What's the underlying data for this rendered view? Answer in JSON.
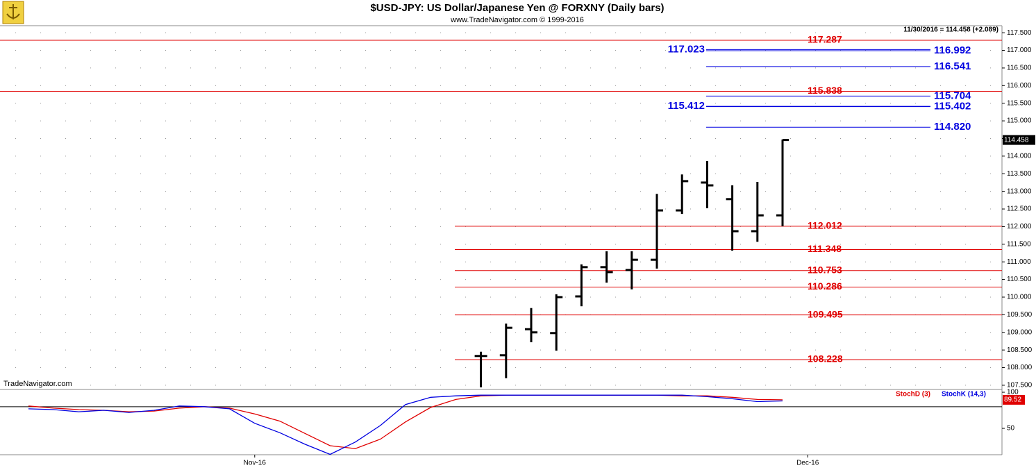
{
  "header": {
    "title": "$USD-JPY:  US Dollar/Japanese Yen @ FORXNY  (Daily bars)",
    "subtitle": "www.TradeNavigator.com © 1999-2016",
    "quote": "11/30/2016 = 114.458 (+2.089)",
    "watermark": "TradeNavigator.com"
  },
  "chart_data": [
    {
      "type": "ohlc",
      "color": "#000000",
      "open": [
        null,
        null,
        null,
        null,
        null,
        null,
        null,
        null,
        null,
        null,
        null,
        null,
        null,
        null,
        null,
        null,
        null,
        null,
        108.33,
        108.35,
        109.09,
        108.98,
        110.02,
        110.85,
        110.77,
        111.06,
        112.46,
        113.25,
        112.78,
        111.87,
        112.32,
        null
      ],
      "high": [
        null,
        null,
        null,
        null,
        null,
        null,
        null,
        null,
        null,
        null,
        null,
        null,
        null,
        null,
        null,
        null,
        null,
        null,
        108.45,
        109.25,
        109.69,
        110.08,
        110.93,
        111.3,
        111.3,
        112.93,
        113.48,
        113.86,
        113.17,
        113.27,
        114.47,
        null
      ],
      "low": [
        null,
        null,
        null,
        null,
        null,
        null,
        null,
        null,
        null,
        null,
        null,
        null,
        null,
        null,
        null,
        null,
        null,
        null,
        107.44,
        107.7,
        108.72,
        108.48,
        109.74,
        110.41,
        110.22,
        110.81,
        112.36,
        112.52,
        111.32,
        111.57,
        112.01,
        null
      ],
      "close": [
        null,
        null,
        null,
        null,
        null,
        null,
        null,
        null,
        null,
        null,
        null,
        null,
        null,
        null,
        null,
        null,
        null,
        null,
        108.33,
        109.13,
        109.0,
        110.0,
        110.85,
        110.71,
        111.06,
        112.46,
        113.29,
        113.17,
        111.87,
        112.32,
        114.458,
        null
      ],
      "ylim": [
        107.4,
        117.7
      ],
      "yticks": [
        {
          "value": 107.5,
          "label": "107.500"
        },
        {
          "value": 108,
          "label": "108.000"
        },
        {
          "value": 108.5,
          "label": "108.500"
        },
        {
          "value": 109,
          "label": "109.000"
        },
        {
          "value": 109.5,
          "label": "109.500"
        },
        {
          "value": 110,
          "label": "110.000"
        },
        {
          "value": 110.5,
          "label": "110.500"
        },
        {
          "value": 111,
          "label": "111.000"
        },
        {
          "value": 111.5,
          "label": "111.500"
        },
        {
          "value": 112,
          "label": "112.000"
        },
        {
          "value": 112.5,
          "label": "112.500"
        },
        {
          "value": 113,
          "label": "113.000"
        },
        {
          "value": 113.5,
          "label": "113.500"
        },
        {
          "value": 114,
          "label": "114.000"
        },
        {
          "value": 114.5,
          "label": "114.500"
        },
        {
          "value": 115,
          "label": "115.000"
        },
        {
          "value": 115.5,
          "label": "115.500"
        },
        {
          "value": 116,
          "label": "116.000"
        },
        {
          "value": 116.5,
          "label": "116.500"
        },
        {
          "value": 117,
          "label": "117.000"
        },
        {
          "value": 117.5,
          "label": "117.500"
        }
      ],
      "grid": true,
      "levels": [
        {
          "value": 117.287,
          "color": "#e00000",
          "span": "full",
          "label_side": "right"
        },
        {
          "value": 115.838,
          "color": "#e00000",
          "span": "full",
          "label_side": "right"
        },
        {
          "value": 112.012,
          "color": "#e00000",
          "span": "partial",
          "label_side": "right"
        },
        {
          "value": 111.348,
          "color": "#e00000",
          "span": "partial",
          "label_side": "right"
        },
        {
          "value": 110.753,
          "color": "#e00000",
          "span": "partial",
          "label_side": "right"
        },
        {
          "value": 110.286,
          "color": "#e00000",
          "span": "partial",
          "label_side": "right"
        },
        {
          "value": 109.495,
          "color": "#e00000",
          "span": "partial",
          "label_side": "right"
        },
        {
          "value": 108.228,
          "color": "#e00000",
          "span": "partial",
          "label_side": "right"
        },
        {
          "value": 117.023,
          "color": "#0000e0",
          "span": "short",
          "label_side": "left"
        },
        {
          "value": 116.992,
          "color": "#0000e0",
          "span": "short",
          "label_side": "right"
        },
        {
          "value": 116.541,
          "color": "#0000e0",
          "span": "short",
          "label_side": "right"
        },
        {
          "value": 115.704,
          "color": "#0000e0",
          "span": "short",
          "label_side": "right"
        },
        {
          "value": 115.412,
          "color": "#0000e0",
          "span": "short",
          "label_side": "left"
        },
        {
          "value": 115.402,
          "color": "#0000e0",
          "span": "short",
          "label_side": "right"
        },
        {
          "value": 114.82,
          "label": "114.820",
          "color": "#0000e0",
          "span": "short",
          "label_side": "right"
        }
      ]
    },
    {
      "type": "line",
      "categories": [
        null,
        null,
        null,
        null,
        null,
        null,
        null,
        null,
        null,
        "Nov-16",
        null,
        null,
        null,
        null,
        null,
        null,
        null,
        null,
        null,
        null,
        null,
        null,
        null,
        null,
        null,
        null,
        null,
        null,
        null,
        null,
        null,
        "Dec-16"
      ],
      "series": [
        {
          "name": "StochD (3)",
          "color": "#e00000",
          "values": [
            81,
            78,
            76,
            75,
            73,
            74,
            78,
            80,
            78,
            70,
            60,
            43,
            26,
            22,
            35,
            59,
            79,
            90,
            95,
            96,
            96,
            96,
            96,
            96,
            96,
            96,
            95,
            95,
            93,
            90,
            89.52,
            null
          ]
        },
        {
          "name": "StochK (14,3)",
          "color": "#0000e0",
          "values": [
            77,
            76,
            73,
            75,
            72,
            75,
            81,
            80,
            77,
            57,
            44,
            28,
            14,
            31,
            54,
            83,
            93,
            95,
            96,
            96,
            96,
            96,
            96,
            96,
            96,
            96,
            96,
            94,
            91,
            87,
            88,
            null
          ]
        }
      ],
      "ylim": [
        13.5,
        102.9
      ],
      "yticks": [
        50,
        100
      ],
      "reference_line": 80
    }
  ]
}
